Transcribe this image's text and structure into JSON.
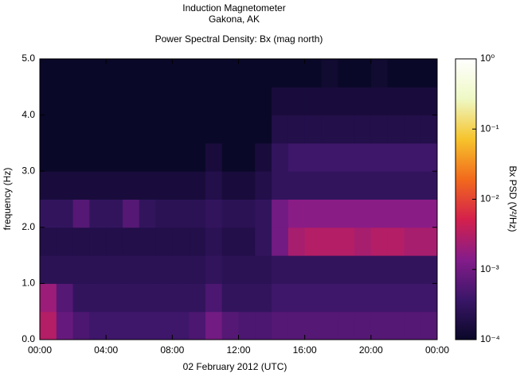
{
  "chart_data": {
    "type": "spectrogram",
    "title": "Induction Magnetometer",
    "subtitle": "Gakona, AK",
    "plot_title": "Power Spectral Density: Bx (mag north)",
    "x_label": "02 February 2012 (UTC)",
    "y_label": "frequency (Hz)",
    "colorbar_label": "Bx PSD (V²/Hz)",
    "xlim": [
      0,
      24
    ],
    "xticks": [
      {
        "value": 0,
        "label": "00:00"
      },
      {
        "value": 4,
        "label": "04:00"
      },
      {
        "value": 8,
        "label": "08:00"
      },
      {
        "value": 12,
        "label": "12:00"
      },
      {
        "value": 16,
        "label": "16:00"
      },
      {
        "value": 20,
        "label": "20:00"
      },
      {
        "value": 24,
        "label": "00:00"
      }
    ],
    "ylim": [
      0,
      5
    ],
    "yticks": [
      {
        "value": 0,
        "label": "0.0"
      },
      {
        "value": 1,
        "label": "1.0"
      },
      {
        "value": 2,
        "label": "2.0"
      },
      {
        "value": 3,
        "label": "3.0"
      },
      {
        "value": 4,
        "label": "4.0"
      },
      {
        "value": 5,
        "label": "5.0"
      }
    ],
    "clim": [
      0.0001,
      1
    ],
    "color_scale": "log",
    "cticks": [
      {
        "value": 1,
        "label": "10⁰"
      },
      {
        "value": 0.1,
        "label": "10⁻¹"
      },
      {
        "value": 0.01,
        "label": "10⁻²"
      },
      {
        "value": 0.001,
        "label": "10⁻³"
      },
      {
        "value": 0.0001,
        "label": "10⁻⁴"
      }
    ],
    "colormap": [
      "#0a0828",
      "#3a1668",
      "#851c8a",
      "#d4204c",
      "#f26a1c",
      "#f6c42c",
      "#eef8c4",
      "#ffffff"
    ],
    "x": [
      0,
      1,
      2,
      3,
      4,
      5,
      6,
      7,
      8,
      9,
      10,
      11,
      12,
      13,
      14,
      15,
      16,
      17,
      18,
      19,
      20,
      21,
      22,
      23
    ],
    "frequency_bins": [
      0,
      0.5,
      1,
      1.5,
      2,
      2.5,
      3,
      3.5,
      4,
      4.5,
      5
    ],
    "values": [
      [
        0.003,
        0.0008,
        0.0005,
        0.0004,
        0.0004,
        0.0004,
        0.0004,
        0.0004,
        0.0004,
        0.0005,
        0.001,
        0.0006,
        0.0005,
        0.0005,
        0.0006,
        0.0006,
        0.0006,
        0.0006,
        0.0006,
        0.0006,
        0.0006,
        0.0006,
        0.0006,
        0.0006
      ],
      [
        0.002,
        0.0006,
        0.0003,
        0.0003,
        0.0003,
        0.0003,
        0.0003,
        0.0003,
        0.0003,
        0.0003,
        0.0005,
        0.0003,
        0.0003,
        0.0003,
        0.0004,
        0.0004,
        0.0004,
        0.0004,
        0.0004,
        0.0004,
        0.0004,
        0.0004,
        0.0004,
        0.0004
      ],
      [
        0.00025,
        0.00025,
        0.00025,
        0.00025,
        0.00025,
        0.00025,
        0.00025,
        0.00025,
        0.00025,
        0.00025,
        0.0003,
        0.00025,
        0.00025,
        0.00025,
        0.0003,
        0.0003,
        0.0003,
        0.0003,
        0.0003,
        0.0003,
        0.0003,
        0.0003,
        0.0003,
        0.0003
      ],
      [
        0.0002,
        0.0002,
        0.0002,
        0.0002,
        0.0002,
        0.0002,
        0.0002,
        0.0002,
        0.0002,
        0.0002,
        0.00025,
        0.0002,
        0.0002,
        0.0003,
        0.001,
        0.0025,
        0.003,
        0.003,
        0.003,
        0.0025,
        0.003,
        0.003,
        0.0025,
        0.0025
      ],
      [
        0.0003,
        0.0003,
        0.0006,
        0.0003,
        0.0003,
        0.0006,
        0.0003,
        0.00025,
        0.00025,
        0.00025,
        0.0003,
        0.00025,
        0.00025,
        0.0003,
        0.001,
        0.0015,
        0.0015,
        0.0015,
        0.0015,
        0.0015,
        0.0015,
        0.0015,
        0.0015,
        0.0015
      ],
      [
        0.00015,
        0.00015,
        0.00015,
        0.00015,
        0.00015,
        0.00015,
        0.00015,
        0.00015,
        0.00015,
        0.00015,
        0.0002,
        0.00015,
        0.00015,
        0.0002,
        0.0003,
        0.0003,
        0.0003,
        0.0003,
        0.0003,
        0.0003,
        0.0003,
        0.0003,
        0.0003,
        0.0003
      ],
      [
        0.0001,
        0.0001,
        0.0001,
        0.0001,
        0.0001,
        0.0001,
        0.0001,
        0.0001,
        0.0001,
        0.0001,
        0.00015,
        0.0001,
        0.0001,
        0.00015,
        0.0003,
        0.0004,
        0.0004,
        0.0004,
        0.0004,
        0.0004,
        0.0004,
        0.0004,
        0.0004,
        0.0004
      ],
      [
        7e-05,
        7e-05,
        7e-05,
        7e-05,
        7e-05,
        7e-05,
        7e-05,
        7e-05,
        7e-05,
        7e-05,
        0.0001,
        7e-05,
        7e-05,
        0.0001,
        0.0002,
        0.0002,
        0.0002,
        0.0002,
        0.0002,
        0.0002,
        0.0002,
        0.0002,
        0.0002,
        0.0002
      ],
      [
        5e-05,
        5e-05,
        5e-05,
        5e-05,
        5e-05,
        5e-05,
        5e-05,
        5e-05,
        5e-05,
        5e-05,
        8e-05,
        5e-05,
        5e-05,
        8e-05,
        0.00015,
        0.00015,
        0.00015,
        0.00015,
        0.00015,
        0.00015,
        0.00015,
        0.00015,
        0.00015,
        0.00015
      ],
      [
        4e-05,
        4e-05,
        4e-05,
        4e-05,
        4e-05,
        4e-05,
        4e-05,
        4e-05,
        4e-05,
        4e-05,
        6e-05,
        4e-05,
        4e-05,
        6e-05,
        0.0001,
        0.0001,
        0.0001,
        0.00012,
        0.0001,
        0.0001,
        0.00012,
        0.0001,
        0.0001,
        0.0001
      ]
    ]
  }
}
